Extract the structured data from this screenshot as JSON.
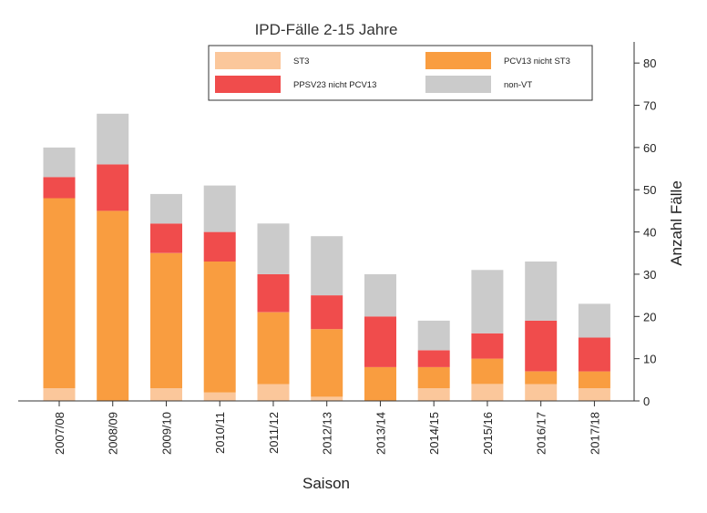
{
  "chart_data": {
    "type": "bar",
    "stacked": true,
    "title": "IPD-Fälle 2-15 Jahre",
    "xlabel": "Saison",
    "ylabel": "Anzahl Fälle",
    "ylim": [
      0,
      85
    ],
    "yticks": [
      0,
      10,
      20,
      30,
      40,
      50,
      60,
      70,
      80
    ],
    "grid": false,
    "legend_position": "top-right",
    "categories": [
      "2007/08",
      "2008/09",
      "2009/10",
      "2010/11",
      "2011/12",
      "2012/13",
      "2013/14",
      "2014/15",
      "2015/16",
      "2016/17",
      "2017/18"
    ],
    "series": [
      {
        "name": "ST3",
        "color": "#fbc79b",
        "values": [
          3,
          0,
          3,
          2,
          4,
          1,
          0,
          3,
          4,
          4,
          3
        ]
      },
      {
        "name": "PCV13 nicht ST3",
        "color": "#f99d40",
        "values": [
          45,
          45,
          32,
          31,
          17,
          16,
          8,
          5,
          6,
          3,
          4
        ]
      },
      {
        "name": "PPSV23 nicht PCV13",
        "color": "#f04c4c",
        "values": [
          5,
          11,
          7,
          7,
          9,
          8,
          12,
          4,
          6,
          12,
          8
        ]
      },
      {
        "name": "non-VT",
        "color": "#cbcbcb",
        "values": [
          7,
          12,
          7,
          11,
          12,
          14,
          10,
          7,
          15,
          14,
          8
        ]
      }
    ]
  }
}
